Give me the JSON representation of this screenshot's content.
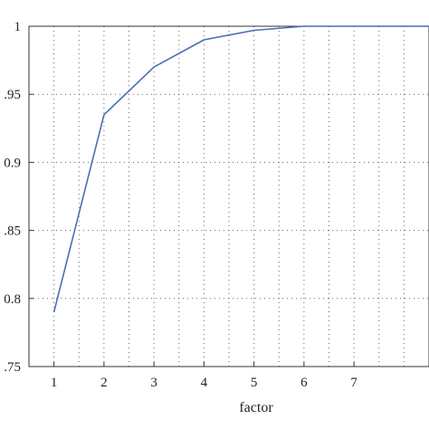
{
  "chart_data": {
    "type": "line",
    "title": "",
    "xlabel": "factor",
    "ylabel": "",
    "xlim": [
      0.5,
      8.5
    ],
    "ylim": [
      0.75,
      1.0
    ],
    "x_ticks": [
      1,
      2,
      3,
      4,
      5,
      6,
      7
    ],
    "x_tick_labels": [
      "1",
      "2",
      "3",
      "4",
      "5",
      "6",
      "7"
    ],
    "y_ticks": [
      0.75,
      0.8,
      0.85,
      0.9,
      0.95,
      1.0
    ],
    "y_tick_labels": [
      ".75",
      "0.8",
      ".85",
      "0.9",
      ".95",
      "1"
    ],
    "grid": true,
    "grid_style": "dotted",
    "series": [
      {
        "color": "#4a6fb5",
        "x": [
          1,
          2,
          3,
          4,
          5,
          6,
          7,
          8.5
        ],
        "y": [
          0.79,
          0.935,
          0.97,
          0.99,
          0.997,
          1.0,
          1.0,
          1.0
        ]
      }
    ]
  }
}
